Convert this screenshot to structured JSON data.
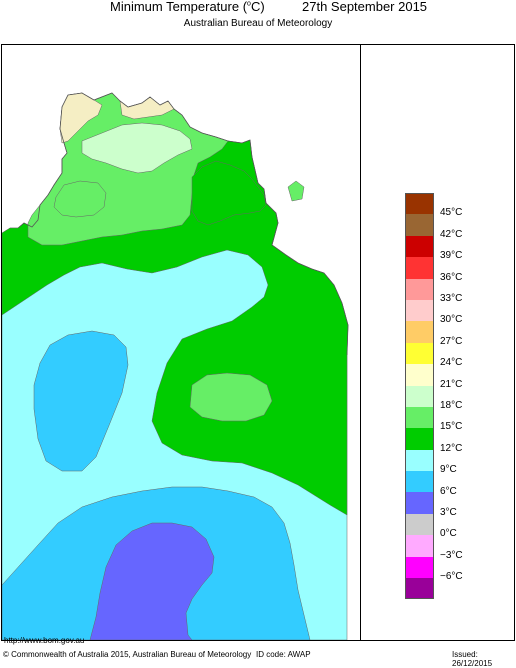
{
  "header": {
    "title_prefix": "Minimum Temperature (",
    "title_unit_sup": "o",
    "title_suffix": "C)",
    "date": "27th September 2015",
    "subtitle": "Australian Bureau of Meteorology"
  },
  "legend": {
    "items": [
      {
        "color": "#993300",
        "label": "45°C"
      },
      {
        "color": "#996633",
        "label": "42°C"
      },
      {
        "color": "#cc0000",
        "label": "39°C"
      },
      {
        "color": "#ff3333",
        "label": "36°C"
      },
      {
        "color": "#ff9999",
        "label": "33°C"
      },
      {
        "color": "#ffcccc",
        "label": "30°C"
      },
      {
        "color": "#ffcc66",
        "label": "27°C"
      },
      {
        "color": "#ffff33",
        "label": "24°C"
      },
      {
        "color": "#ffffcc",
        "label": "21°C"
      },
      {
        "color": "#ccffcc",
        "label": "18°C"
      },
      {
        "color": "#66ee66",
        "label": "15°C"
      },
      {
        "color": "#00cc00",
        "label": "12°C"
      },
      {
        "color": "#99ffff",
        "label": "9°C"
      },
      {
        "color": "#33ccff",
        "label": "6°C"
      },
      {
        "color": "#6666ff",
        "label": "3°C"
      },
      {
        "color": "#cccccc",
        "label": "0°C"
      },
      {
        "color": "#ffaaff",
        "label": "−3°C"
      },
      {
        "color": "#ff00ff",
        "label": "−6°C"
      },
      {
        "color": "#990099",
        "label": ""
      }
    ]
  },
  "map_colors": {
    "band_21_24": "#f5eec4",
    "band_18_21": "#ccffcc",
    "band_15_18": "#66ee66",
    "band_12_15": "#00cc00",
    "band_9_12": "#99ffff",
    "band_6_9": "#33ccff",
    "band_3_6": "#6666ff"
  },
  "footer": {
    "url": "http://www.bom.gov.au",
    "copyright": "© Commonwealth of Australia 2015, Australian Bureau of Meteorology",
    "id_code": "ID code: AWAP",
    "issued": "Issued: 26/12/2015"
  }
}
